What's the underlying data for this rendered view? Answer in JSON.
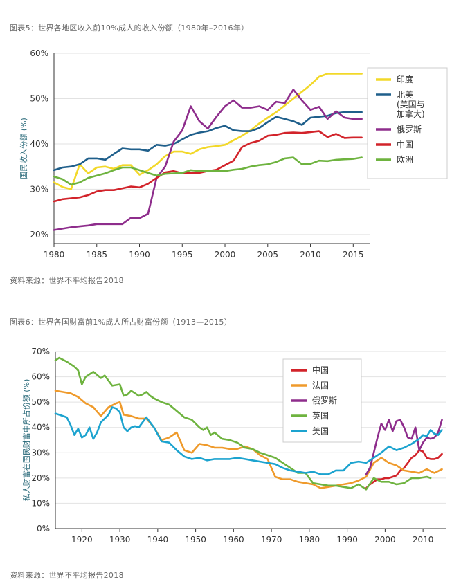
{
  "captions": {
    "fig5_title": "图表5：世界各地区收入前10%成人的收入份额（1980年–2016年）",
    "fig5_source": "资料来源：世界不平均报告2018",
    "fig6_title": "图表6：世界各国财富前1%成人所占财富份额（1913—2015）",
    "fig6_source": "资料来源：世界不平均报告2018"
  },
  "chart_data": [
    {
      "type": "line",
      "title": "图表5：世界各地区收入前10%成人的收入份额（1980年–2016年）",
      "xlabel": "",
      "ylabel": "国民收入份额 (%)",
      "xlim": [
        1980,
        2017
      ],
      "ylim": [
        18,
        60
      ],
      "xticks": [
        1980,
        1985,
        1990,
        1995,
        2000,
        2005,
        2010,
        2015
      ],
      "yticks": [
        20,
        30,
        40,
        50,
        60
      ],
      "ytick_labels": [
        "20%",
        "30%",
        "40%",
        "50%",
        "60%"
      ],
      "grid": true,
      "legend_position": "right",
      "series": [
        {
          "name": "印度",
          "color": "#f2d829",
          "x": [
            1980,
            1981,
            1982,
            1983,
            1984,
            1985,
            1986,
            1987,
            1988,
            1989,
            1990,
            1991,
            1992,
            1993,
            1994,
            1995,
            1996,
            1997,
            1998,
            1999,
            2000,
            2001,
            2002,
            2003,
            2004,
            2005,
            2006,
            2007,
            2008,
            2009,
            2010,
            2011,
            2012,
            2013,
            2014,
            2015,
            2016
          ],
          "y": [
            31.5,
            30.5,
            30,
            35.5,
            33.5,
            34.8,
            35,
            34.5,
            35.3,
            35.3,
            33.2,
            34.2,
            35.5,
            37.3,
            38.3,
            38.3,
            37.8,
            38.8,
            39.3,
            39.5,
            39.8,
            40.8,
            41.8,
            43,
            44.5,
            45.8,
            47,
            48.5,
            50,
            51.5,
            53,
            54.8,
            55.5,
            55.5,
            55.5,
            55.5,
            55.5
          ]
        },
        {
          "name": "北美\n(美国与\n加拿大)",
          "color": "#1f5f8b",
          "x": [
            1980,
            1981,
            1982,
            1983,
            1984,
            1985,
            1986,
            1987,
            1988,
            1989,
            1990,
            1991,
            1992,
            1993,
            1994,
            1995,
            1996,
            1997,
            1998,
            1999,
            2000,
            2001,
            2002,
            2003,
            2004,
            2005,
            2006,
            2007,
            2008,
            2009,
            2010,
            2011,
            2012,
            2013,
            2014,
            2015,
            2016
          ],
          "y": [
            34.2,
            34.8,
            35,
            35.5,
            36.8,
            36.8,
            36.5,
            37.8,
            39,
            38.8,
            38.8,
            38.5,
            39.8,
            39.6,
            40,
            41,
            42,
            42.5,
            42.8,
            43.5,
            44,
            43,
            42.8,
            42.8,
            43.5,
            44.8,
            46,
            45.5,
            45,
            44.2,
            45.8,
            46,
            46.2,
            46.8,
            47,
            47,
            47
          ]
        },
        {
          "name": "俄罗斯",
          "color": "#8e2d8c",
          "x": [
            1980,
            1981,
            1982,
            1983,
            1984,
            1985,
            1986,
            1987,
            1988,
            1989,
            1990,
            1991,
            1992,
            1993,
            1994,
            1995,
            1996,
            1997,
            1998,
            1999,
            2000,
            2001,
            2002,
            2003,
            2004,
            2005,
            2006,
            2007,
            2008,
            2009,
            2010,
            2011,
            2012,
            2013,
            2014,
            2015,
            2016
          ],
          "y": [
            21,
            21.3,
            21.6,
            21.8,
            22,
            22.3,
            22.3,
            22.3,
            22.3,
            23.7,
            23.6,
            24.6,
            32.5,
            35,
            40.5,
            43,
            48.3,
            45,
            43.4,
            46,
            48.3,
            49.6,
            48,
            48,
            48.3,
            47.5,
            49.3,
            49,
            52,
            49.6,
            47.5,
            48.2,
            45.5,
            47.2,
            45.8,
            45.5,
            45.5
          ]
        },
        {
          "name": "中国",
          "color": "#d2232a",
          "x": [
            1980,
            1981,
            1982,
            1983,
            1984,
            1985,
            1986,
            1987,
            1988,
            1989,
            1990,
            1991,
            1992,
            1993,
            1994,
            1995,
            1996,
            1997,
            1998,
            1999,
            2000,
            2001,
            2002,
            2003,
            2004,
            2005,
            2006,
            2007,
            2008,
            2009,
            2010,
            2011,
            2012,
            2013,
            2014,
            2015,
            2016
          ],
          "y": [
            27.3,
            27.8,
            28,
            28.2,
            28.7,
            29.5,
            29.8,
            29.8,
            30.2,
            30.6,
            30.4,
            31.2,
            32.5,
            33.7,
            34,
            33.5,
            33.6,
            33.6,
            34,
            34.3,
            35.3,
            36.3,
            39.3,
            40.2,
            40.7,
            41.8,
            42,
            42.4,
            42.5,
            42.4,
            42.6,
            42.8,
            41.5,
            42.2,
            41.3,
            41.4,
            41.4
          ]
        },
        {
          "name": "欧洲",
          "color": "#6eb33f",
          "x": [
            1980,
            1981,
            1982,
            1983,
            1984,
            1985,
            1986,
            1987,
            1988,
            1989,
            1990,
            1991,
            1992,
            1993,
            1994,
            1995,
            1996,
            1997,
            1998,
            1999,
            2000,
            2001,
            2002,
            2003,
            2004,
            2005,
            2006,
            2007,
            2008,
            2009,
            2010,
            2011,
            2012,
            2013,
            2014,
            2015,
            2016
          ],
          "y": [
            32.8,
            32.2,
            31,
            31.5,
            32.5,
            33,
            33.5,
            34.2,
            34.8,
            34.8,
            34.2,
            33.6,
            33,
            33.4,
            33.5,
            33.6,
            34.2,
            34,
            34,
            34,
            34,
            34.3,
            34.5,
            35,
            35.3,
            35.5,
            36,
            36.8,
            37,
            35.5,
            35.6,
            36.3,
            36.2,
            36.5,
            36.6,
            36.7,
            37
          ]
        }
      ]
    },
    {
      "type": "line",
      "title": "图表6：世界各国财富前1%成人所占财富份额（1913—2015）",
      "xlabel": "",
      "ylabel": "私人财富在国民财富中所占份额 (%)",
      "xlim": [
        1913,
        2016
      ],
      "ylim": [
        0,
        70
      ],
      "xticks": [
        1920,
        1930,
        1940,
        1950,
        1960,
        1970,
        1980,
        1990,
        2000,
        2010
      ],
      "yticks": [
        0,
        10,
        20,
        30,
        40,
        50,
        60,
        70
      ],
      "ytick_labels": [
        "0%",
        "10%",
        "20%",
        "30%",
        "40%",
        "50%",
        "60%",
        "70%"
      ],
      "grid": true,
      "legend_position": "top-center",
      "series": [
        {
          "name": "中国",
          "color": "#d2232a",
          "x": [
            1995,
            1996,
            1997,
            1998,
            1999,
            2000,
            2001,
            2002,
            2003,
            2004,
            2005,
            2006,
            2007,
            2008,
            2009,
            2010,
            2011,
            2012,
            2013,
            2014,
            2015
          ],
          "y": [
            16,
            17.5,
            18.5,
            19.5,
            19.5,
            20,
            20,
            20.5,
            21,
            23,
            24,
            26,
            28,
            29,
            31,
            30.5,
            28,
            27.5,
            27.5,
            28,
            29.5
          ]
        },
        {
          "name": "法国",
          "color": "#ef9a2b",
          "x": [
            1913,
            1915,
            1917,
            1919,
            1921,
            1923,
            1925,
            1927,
            1929,
            1930,
            1931,
            1933,
            1935,
            1937,
            1939,
            1941,
            1943,
            1945,
            1947,
            1949,
            1951,
            1953,
            1955,
            1957,
            1959,
            1961,
            1963,
            1965,
            1967,
            1969,
            1971,
            1973,
            1975,
            1977,
            1979,
            1981,
            1983,
            1985,
            1987,
            1989,
            1991,
            1993,
            1995,
            1997,
            1999,
            2001,
            2003,
            2005,
            2007,
            2009,
            2011,
            2013,
            2015
          ],
          "y": [
            54.5,
            54,
            53.5,
            52,
            49.5,
            48,
            44.5,
            48,
            49.5,
            50,
            45,
            44.5,
            43.5,
            43.5,
            40,
            35,
            36,
            38,
            31,
            30,
            33.5,
            33,
            32,
            32,
            31.5,
            31.5,
            32.5,
            31.5,
            29,
            27.5,
            20.5,
            19.5,
            19.5,
            18.5,
            18,
            17.5,
            16,
            16.5,
            17,
            17.5,
            18,
            19,
            20.5,
            26,
            28,
            26,
            25,
            23,
            22.5,
            22,
            23.5,
            22,
            23.5
          ]
        },
        {
          "name": "俄罗斯",
          "color": "#8e2d8c",
          "x": [
            1995,
            1996,
            1997,
            1998,
            1999,
            2000,
            2001,
            2002,
            2003,
            2004,
            2005,
            2006,
            2007,
            2008,
            2009,
            2010,
            2011,
            2012,
            2013,
            2014,
            2015
          ],
          "y": [
            21.5,
            24,
            30,
            36,
            41.5,
            39,
            43,
            38.5,
            42.5,
            43,
            40,
            36,
            35.5,
            40,
            31,
            34,
            36,
            35.5,
            36,
            38,
            43
          ]
        },
        {
          "name": "英国",
          "color": "#6eb33f",
          "x": [
            1913,
            1914,
            1916,
            1918,
            1919,
            1920,
            1921,
            1923,
            1925,
            1926,
            1928,
            1930,
            1931,
            1932,
            1933,
            1934,
            1935,
            1936,
            1937,
            1938,
            1939,
            1941,
            1943,
            1945,
            1947,
            1949,
            1951,
            1952,
            1953,
            1954,
            1955,
            1957,
            1959,
            1961,
            1963,
            1965,
            1967,
            1969,
            1971,
            1973,
            1975,
            1977,
            1979,
            1981,
            1983,
            1985,
            1987,
            1989,
            1991,
            1993,
            1995,
            1997,
            1999,
            2001,
            2003,
            2005,
            2007,
            2009,
            2011,
            2012
          ],
          "y": [
            66.5,
            67.5,
            66,
            64,
            62.5,
            57,
            60,
            62,
            59.5,
            60.5,
            56.5,
            57,
            52.5,
            53,
            54.5,
            53.5,
            52.5,
            53,
            54,
            52.5,
            51.5,
            50,
            49,
            46.5,
            44,
            43,
            40,
            39,
            40,
            37,
            38,
            35.5,
            35,
            34,
            32,
            31.5,
            30,
            29,
            28,
            26,
            24,
            22,
            22,
            18,
            17.5,
            17,
            17,
            16.5,
            16,
            17.5,
            15.5,
            20,
            18.5,
            18.5,
            17.5,
            18,
            20,
            20,
            20.5,
            20
          ]
        },
        {
          "name": "美国",
          "color": "#1ca3cf",
          "x": [
            1913,
            1914,
            1916,
            1917,
            1918,
            1919,
            1920,
            1921,
            1922,
            1923,
            1924,
            1925,
            1927,
            1928,
            1929,
            1930,
            1931,
            1932,
            1933,
            1934,
            1935,
            1936,
            1937,
            1939,
            1941,
            1943,
            1945,
            1947,
            1949,
            1951,
            1953,
            1955,
            1957,
            1959,
            1961,
            1963,
            1965,
            1967,
            1969,
            1971,
            1973,
            1975,
            1977,
            1979,
            1981,
            1983,
            1985,
            1987,
            1989,
            1991,
            1993,
            1995,
            1997,
            1999,
            2001,
            2003,
            2005,
            2007,
            2009,
            2010,
            2011,
            2012,
            2013,
            2014,
            2015
          ],
          "y": [
            45.5,
            45,
            44,
            41,
            37,
            39.5,
            36,
            37,
            40,
            35.5,
            38,
            42,
            45,
            48,
            47.5,
            46,
            40,
            38.5,
            40,
            40.5,
            40,
            42,
            44,
            40,
            34.5,
            34,
            31,
            28.5,
            27.5,
            28,
            27,
            27.5,
            27.5,
            27.5,
            28,
            27.5,
            27,
            26.5,
            26,
            25.5,
            24,
            23,
            22.5,
            22,
            22.5,
            21.5,
            21.5,
            23,
            23,
            26,
            26.5,
            26,
            28,
            30,
            32.5,
            31,
            32,
            33.5,
            35.5,
            37,
            36.5,
            39,
            37.5,
            37,
            39
          ]
        }
      ]
    }
  ]
}
